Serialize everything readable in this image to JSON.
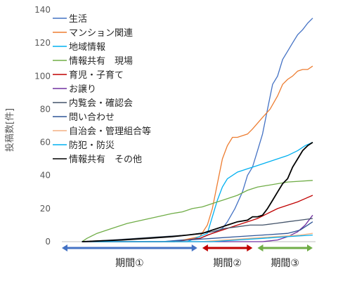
{
  "chart_data": {
    "type": "line",
    "ylabel": "投稿数[件]",
    "ylim": [
      0,
      140
    ],
    "yticks": [
      "0",
      "20",
      "40",
      "60",
      "80",
      "100",
      "120",
      "140"
    ],
    "xlim": [
      0,
      100
    ],
    "grid": false,
    "legend_position": "top-left",
    "series": [
      {
        "name": "生活",
        "color": "#4472C4",
        "points": [
          [
            8,
            0
          ],
          [
            40,
            0
          ],
          [
            55,
            2
          ],
          [
            60,
            5
          ],
          [
            64,
            8
          ],
          [
            66,
            12
          ],
          [
            69,
            20
          ],
          [
            72,
            30
          ],
          [
            74,
            40
          ],
          [
            76,
            45
          ],
          [
            78,
            55
          ],
          [
            80,
            65
          ],
          [
            82,
            80
          ],
          [
            84,
            95
          ],
          [
            86,
            100
          ],
          [
            88,
            110
          ],
          [
            90,
            115
          ],
          [
            92,
            120
          ],
          [
            94,
            125
          ],
          [
            96,
            128
          ],
          [
            98,
            132
          ],
          [
            100,
            135
          ]
        ]
      },
      {
        "name": "マンション関連",
        "color": "#ED7D31",
        "points": [
          [
            8,
            0
          ],
          [
            45,
            0
          ],
          [
            55,
            3
          ],
          [
            58,
            10
          ],
          [
            60,
            20
          ],
          [
            62,
            35
          ],
          [
            64,
            50
          ],
          [
            66,
            58
          ],
          [
            68,
            63
          ],
          [
            70,
            63
          ],
          [
            72,
            64
          ],
          [
            74,
            65
          ],
          [
            76,
            68
          ],
          [
            80,
            75
          ],
          [
            83,
            80
          ],
          [
            86,
            88
          ],
          [
            88,
            95
          ],
          [
            90,
            98
          ],
          [
            92,
            100
          ],
          [
            94,
            103
          ],
          [
            96,
            104
          ],
          [
            98,
            104
          ],
          [
            100,
            106
          ]
        ]
      },
      {
        "name": "地域情報",
        "color": "#00B0F0",
        "points": [
          [
            8,
            0
          ],
          [
            50,
            0
          ],
          [
            58,
            5
          ],
          [
            60,
            15
          ],
          [
            62,
            25
          ],
          [
            64,
            33
          ],
          [
            66,
            38
          ],
          [
            70,
            42
          ],
          [
            74,
            44
          ],
          [
            78,
            46
          ],
          [
            82,
            48
          ],
          [
            86,
            50
          ],
          [
            90,
            52
          ],
          [
            94,
            55
          ],
          [
            97,
            58
          ],
          [
            100,
            60
          ]
        ]
      },
      {
        "name": "情報共有　現場",
        "color": "#70AD47",
        "points": [
          [
            8,
            0
          ],
          [
            10,
            2
          ],
          [
            14,
            5
          ],
          [
            20,
            8
          ],
          [
            26,
            11
          ],
          [
            32,
            13
          ],
          [
            38,
            15
          ],
          [
            44,
            17
          ],
          [
            48,
            18
          ],
          [
            52,
            20
          ],
          [
            56,
            21
          ],
          [
            58,
            22
          ],
          [
            60,
            23
          ],
          [
            62,
            24
          ],
          [
            64,
            25
          ],
          [
            66,
            26
          ],
          [
            70,
            28
          ],
          [
            74,
            31
          ],
          [
            78,
            33
          ],
          [
            82,
            34
          ],
          [
            86,
            35
          ],
          [
            90,
            36
          ],
          [
            100,
            37
          ]
        ]
      },
      {
        "name": "育児・子育て",
        "color": "#C00000",
        "points": [
          [
            8,
            0
          ],
          [
            45,
            0
          ],
          [
            55,
            2
          ],
          [
            58,
            4
          ],
          [
            62,
            6
          ],
          [
            66,
            8
          ],
          [
            70,
            10
          ],
          [
            74,
            12
          ],
          [
            78,
            14
          ],
          [
            82,
            17
          ],
          [
            86,
            20
          ],
          [
            90,
            22
          ],
          [
            94,
            24
          ],
          [
            97,
            26
          ],
          [
            100,
            28
          ]
        ]
      },
      {
        "name": "お譲り",
        "color": "#7030A0",
        "points": [
          [
            8,
            0
          ],
          [
            80,
            0
          ],
          [
            86,
            1
          ],
          [
            90,
            3
          ],
          [
            94,
            6
          ],
          [
            97,
            10
          ],
          [
            100,
            16
          ]
        ]
      },
      {
        "name": "内覧会・確認会",
        "color": "#44546A",
        "points": [
          [
            8,
            0
          ],
          [
            20,
            1
          ],
          [
            30,
            2
          ],
          [
            40,
            3
          ],
          [
            50,
            4
          ],
          [
            55,
            5
          ],
          [
            60,
            6
          ],
          [
            65,
            8
          ],
          [
            70,
            9
          ],
          [
            75,
            10
          ],
          [
            80,
            10
          ],
          [
            85,
            11
          ],
          [
            90,
            12
          ],
          [
            95,
            13
          ],
          [
            100,
            14
          ]
        ]
      },
      {
        "name": "問い合わせ",
        "color": "#2F5597",
        "points": [
          [
            8,
            0
          ],
          [
            40,
            0
          ],
          [
            50,
            1
          ],
          [
            60,
            2
          ],
          [
            70,
            3
          ],
          [
            80,
            4
          ],
          [
            90,
            5
          ],
          [
            95,
            7
          ],
          [
            98,
            10
          ],
          [
            100,
            12
          ]
        ]
      },
      {
        "name": "自治会・管理組合等",
        "color": "#F4B183",
        "points": [
          [
            8,
            0
          ],
          [
            55,
            0
          ],
          [
            65,
            1
          ],
          [
            75,
            2
          ],
          [
            85,
            3
          ],
          [
            95,
            4
          ],
          [
            100,
            5
          ]
        ]
      },
      {
        "name": "防犯・防災",
        "color": "#00B0F0",
        "points": [
          [
            8,
            0
          ],
          [
            60,
            0
          ],
          [
            70,
            1
          ],
          [
            80,
            2
          ],
          [
            90,
            3
          ],
          [
            100,
            4
          ]
        ]
      },
      {
        "name": "情報共有　その他",
        "color": "#000000",
        "points": [
          [
            8,
            0
          ],
          [
            24,
            1
          ],
          [
            34,
            2
          ],
          [
            44,
            3
          ],
          [
            50,
            4
          ],
          [
            56,
            5
          ],
          [
            60,
            7
          ],
          [
            64,
            9
          ],
          [
            66,
            10
          ],
          [
            70,
            12
          ],
          [
            74,
            13
          ],
          [
            76,
            15
          ],
          [
            78,
            15
          ],
          [
            80,
            16
          ],
          [
            82,
            20
          ],
          [
            84,
            25
          ],
          [
            86,
            30
          ],
          [
            88,
            35
          ],
          [
            90,
            38
          ],
          [
            92,
            45
          ],
          [
            94,
            50
          ],
          [
            96,
            55
          ],
          [
            98,
            58
          ],
          [
            100,
            60
          ]
        ]
      }
    ],
    "periods": [
      {
        "label": "期間①",
        "from": 0,
        "to": 54,
        "color": "#4472C4"
      },
      {
        "label": "期間②",
        "from": 56,
        "to": 76,
        "color": "#C00000"
      },
      {
        "label": "期間③",
        "from": 78,
        "to": 100,
        "color": "#70AD47"
      }
    ]
  }
}
